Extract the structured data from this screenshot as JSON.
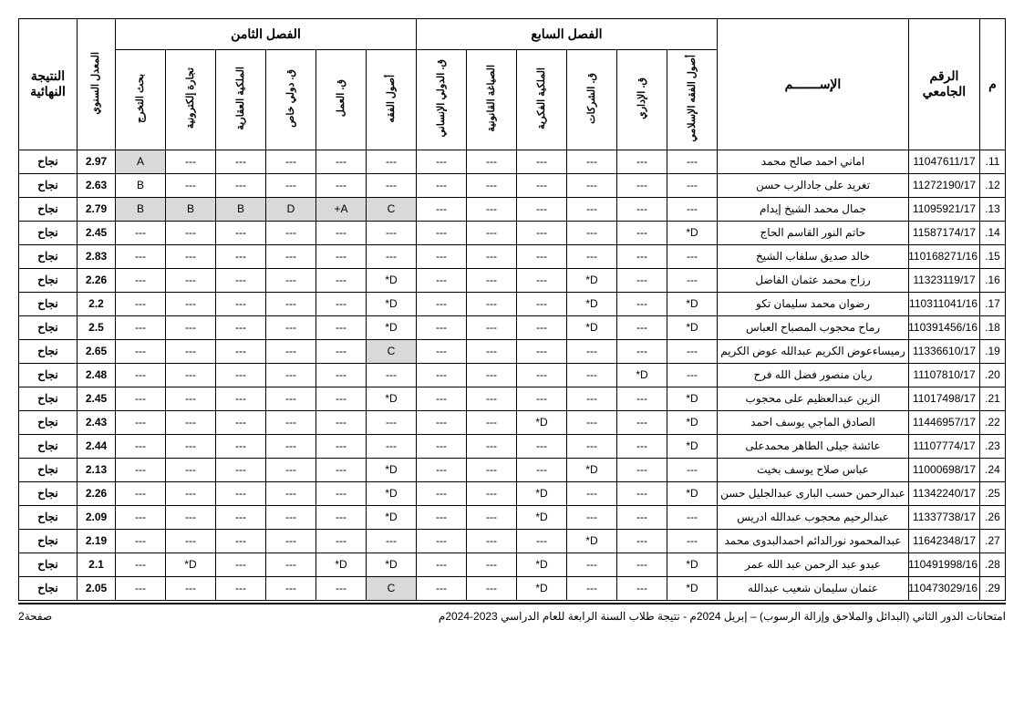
{
  "headers": {
    "serial": "م",
    "uni_id": "الرقم الجامعي",
    "name": "الإســـــــم",
    "semester7": "الفصل السابع",
    "semester8": "الفصل الثامن",
    "gpa": "المعدل السنوي",
    "result": "النتيجة النهائية",
    "s7_cols": [
      "أصول الفقه الإسلامي",
      "ق. الإداري",
      "ق. الشركات",
      "الملكية الفكرية",
      "الصياغة القانونية",
      "ق. الدولي الإنساني"
    ],
    "s8_cols": [
      "أصول الفقه",
      "ق. العمل",
      "ق. دولي خاص",
      "الملكية العقارية",
      "تجارة إلكترونية",
      "بحث التخرج"
    ]
  },
  "footer": {
    "right": "امتحانات الدور الثاني (البدائل والملاحق وإزالة الرسوب) – إبريل 2024م     -     نتيجة طلاب السنة الرابعة للعام الدراسي 2023-2024م",
    "left": "صفحة2"
  },
  "rows": [
    {
      "n": "11",
      "id": "11047611/17",
      "name": "اماني احمد صالح محمد",
      "s7": [
        "---",
        "---",
        "---",
        "---",
        "---",
        "---"
      ],
      "s8": [
        "---",
        "---",
        "---",
        "---",
        "---",
        "A"
      ],
      "s8shade": [
        0,
        0,
        0,
        0,
        0,
        1
      ],
      "gpa": "2.97",
      "res": "نجاح"
    },
    {
      "n": "12",
      "id": "11272190/17",
      "name": "تغريد على جادالرب حسن",
      "s7": [
        "---",
        "---",
        "---",
        "---",
        "---",
        "---"
      ],
      "s8": [
        "---",
        "---",
        "---",
        "---",
        "---",
        "B"
      ],
      "s8shade": [
        0,
        0,
        0,
        0,
        0,
        0
      ],
      "gpa": "2.63",
      "res": "نجاح"
    },
    {
      "n": "13",
      "id": "11095921/17",
      "name": "جمال محمد الشيخ إيدام",
      "s7": [
        "---",
        "---",
        "---",
        "---",
        "---",
        "---"
      ],
      "s8": [
        "C",
        "A+",
        "D",
        "B",
        "B",
        "B"
      ],
      "s8shade": [
        1,
        1,
        1,
        1,
        1,
        1
      ],
      "gpa": "2.79",
      "res": "نجاح"
    },
    {
      "n": "14",
      "id": "11587174/17",
      "name": "حاتم النور القاسم الحاج",
      "s7": [
        "D*",
        "---",
        "---",
        "---",
        "---",
        "---"
      ],
      "s8": [
        "---",
        "---",
        "---",
        "---",
        "---",
        "---"
      ],
      "s8shade": [
        0,
        0,
        0,
        0,
        0,
        0
      ],
      "gpa": "2.45",
      "res": "نجاح"
    },
    {
      "n": "15",
      "id": "110168271/16",
      "name": "خالد صديق سلفاب الشيخ",
      "s7": [
        "---",
        "---",
        "---",
        "---",
        "---",
        "---"
      ],
      "s8": [
        "---",
        "---",
        "---",
        "---",
        "---",
        "---"
      ],
      "s8shade": [
        0,
        0,
        0,
        0,
        0,
        0
      ],
      "gpa": "2.83",
      "res": "نجاح"
    },
    {
      "n": "16",
      "id": "11323119/17",
      "name": "رزاح محمد عثمان الفاضل",
      "s7": [
        "---",
        "---",
        "D*",
        "---",
        "---",
        "---"
      ],
      "s8": [
        "D*",
        "---",
        "---",
        "---",
        "---",
        "---"
      ],
      "s8shade": [
        0,
        0,
        0,
        0,
        0,
        0
      ],
      "gpa": "2.26",
      "res": "نجاح"
    },
    {
      "n": "17",
      "id": "110311041/16",
      "name": "رضوان محمد سليمان تكو",
      "s7": [
        "D*",
        "---",
        "D*",
        "---",
        "---",
        "---"
      ],
      "s8": [
        "D*",
        "---",
        "---",
        "---",
        "---",
        "---"
      ],
      "s8shade": [
        0,
        0,
        0,
        0,
        0,
        0
      ],
      "gpa": "2.2",
      "res": "نجاح"
    },
    {
      "n": "18",
      "id": "110391456/16",
      "name": "رماح محجوب المصباح العباس",
      "s7": [
        "D*",
        "---",
        "D*",
        "---",
        "---",
        "---"
      ],
      "s8": [
        "D*",
        "---",
        "---",
        "---",
        "---",
        "---"
      ],
      "s8shade": [
        0,
        0,
        0,
        0,
        0,
        0
      ],
      "gpa": "2.5",
      "res": "نجاح"
    },
    {
      "n": "19",
      "id": "11336610/17",
      "name": "رميساءعوض الكريم عبدالله عوض الكريم",
      "s7": [
        "---",
        "---",
        "---",
        "---",
        "---",
        "---"
      ],
      "s8": [
        "C",
        "---",
        "---",
        "---",
        "---",
        "---"
      ],
      "s8shade": [
        1,
        0,
        0,
        0,
        0,
        0
      ],
      "gpa": "2.65",
      "res": "نجاح"
    },
    {
      "n": "20",
      "id": "11107810/17",
      "name": "ريان منصور فضل الله فرح",
      "s7": [
        "---",
        "D*",
        "---",
        "---",
        "---",
        "---"
      ],
      "s8": [
        "---",
        "---",
        "---",
        "---",
        "---",
        "---"
      ],
      "s8shade": [
        0,
        0,
        0,
        0,
        0,
        0
      ],
      "gpa": "2.48",
      "res": "نجاح"
    },
    {
      "n": "21",
      "id": "11017498/17",
      "name": "الزين عبدالعظيم على محجوب",
      "s7": [
        "D*",
        "---",
        "---",
        "---",
        "---",
        "---"
      ],
      "s8": [
        "D*",
        "---",
        "---",
        "---",
        "---",
        "---"
      ],
      "s8shade": [
        0,
        0,
        0,
        0,
        0,
        0
      ],
      "gpa": "2.45",
      "res": "نجاح"
    },
    {
      "n": "22",
      "id": "11446957/17",
      "name": "الصادق الماجي يوسف احمد",
      "s7": [
        "D*",
        "---",
        "---",
        "D*",
        "---",
        "---"
      ],
      "s8": [
        "---",
        "---",
        "---",
        "---",
        "---",
        "---"
      ],
      "s8shade": [
        0,
        0,
        0,
        0,
        0,
        0
      ],
      "gpa": "2.43",
      "res": "نجاح"
    },
    {
      "n": "23",
      "id": "11107774/17",
      "name": "عائشة جيلى الطاهر محمدعلى",
      "s7": [
        "D*",
        "---",
        "---",
        "---",
        "---",
        "---"
      ],
      "s8": [
        "---",
        "---",
        "---",
        "---",
        "---",
        "---"
      ],
      "s8shade": [
        0,
        0,
        0,
        0,
        0,
        0
      ],
      "gpa": "2.44",
      "res": "نجاح"
    },
    {
      "n": "24",
      "id": "11000698/17",
      "name": "عباس صلاح يوسف بخيت",
      "s7": [
        "---",
        "---",
        "D*",
        "---",
        "---",
        "---"
      ],
      "s8": [
        "D*",
        "---",
        "---",
        "---",
        "---",
        "---"
      ],
      "s8shade": [
        0,
        0,
        0,
        0,
        0,
        0
      ],
      "gpa": "2.13",
      "res": "نجاح"
    },
    {
      "n": "25",
      "id": "11342240/17",
      "name": "عبدالرحمن حسب البارى عبدالجليل حسن",
      "s7": [
        "D*",
        "---",
        "---",
        "D*",
        "---",
        "---"
      ],
      "s8": [
        "D*",
        "---",
        "---",
        "---",
        "---",
        "---"
      ],
      "s8shade": [
        0,
        0,
        0,
        0,
        0,
        0
      ],
      "gpa": "2.26",
      "res": "نجاح"
    },
    {
      "n": "26",
      "id": "11337738/17",
      "name": "عبدالرحيم محجوب عبدالله ادريس",
      "s7": [
        "---",
        "---",
        "---",
        "D*",
        "---",
        "---"
      ],
      "s8": [
        "D*",
        "---",
        "---",
        "---",
        "---",
        "---"
      ],
      "s8shade": [
        0,
        0,
        0,
        0,
        0,
        0
      ],
      "gpa": "2.09",
      "res": "نجاح"
    },
    {
      "n": "27",
      "id": "11642348/17",
      "name": "عبدالمحمود نورالدائم احمدالبدوى محمد",
      "s7": [
        "---",
        "---",
        "D*",
        "---",
        "---",
        "---"
      ],
      "s8": [
        "---",
        "---",
        "---",
        "---",
        "---",
        "---"
      ],
      "s8shade": [
        0,
        0,
        0,
        0,
        0,
        0
      ],
      "gpa": "2.19",
      "res": "نجاح"
    },
    {
      "n": "28",
      "id": "110491998/16",
      "name": "عبدو عبد الرحمن عبد الله عمر",
      "s7": [
        "D*",
        "---",
        "---",
        "D*",
        "---",
        "---"
      ],
      "s8": [
        "D*",
        "D*",
        "---",
        "---",
        "D*",
        "---"
      ],
      "s8shade": [
        0,
        0,
        0,
        0,
        0,
        0
      ],
      "gpa": "2.1",
      "res": "نجاح"
    },
    {
      "n": "29",
      "id": "110473029/16",
      "name": "عثمان سليمان شعيب عبدالله",
      "s7": [
        "D*",
        "---",
        "---",
        "D*",
        "---",
        "---"
      ],
      "s8": [
        "C",
        "---",
        "---",
        "---",
        "---",
        "---"
      ],
      "s8shade": [
        1,
        0,
        0,
        0,
        0,
        0
      ],
      "gpa": "2.05",
      "res": "نجاح"
    }
  ]
}
